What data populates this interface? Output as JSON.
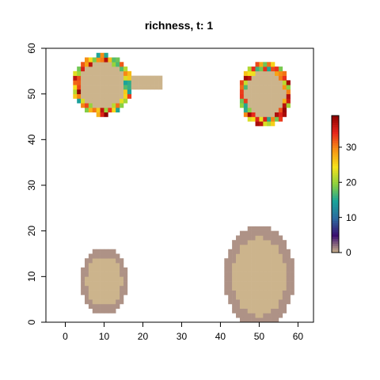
{
  "chart_data": {
    "type": "heatmap",
    "title": "richness, t: 1",
    "xlabel": "",
    "ylabel": "",
    "xlim": [
      -5,
      64
    ],
    "ylim": [
      0,
      60
    ],
    "x_ticks": [
      0,
      10,
      20,
      30,
      40,
      50,
      60
    ],
    "y_ticks": [
      0,
      10,
      20,
      30,
      40,
      50,
      60
    ],
    "grid": false,
    "cell_size": 1,
    "colorbar": {
      "min": 0,
      "max": 39,
      "ticks": [
        0,
        10,
        20,
        30
      ],
      "placement": "right",
      "stops": [
        "#ccb48c",
        "#3b0f6f",
        "#2c6aa0",
        "#1aa39a",
        "#8cd13f",
        "#f6e21b",
        "#f79414",
        "#e8271c",
        "#8b0000"
      ]
    },
    "patches": [
      {
        "cx": 9.5,
        "cy": 52,
        "rx": 7.5,
        "ry": 6.5,
        "inner_richness": 0,
        "ring_richness": [
          14,
          39
        ],
        "extension": {
          "x1": 17,
          "x2": 25,
          "y1": 51,
          "y2": 54
        }
      },
      {
        "cx": 51.5,
        "cy": 50,
        "rx": 6.5,
        "ry": 7,
        "inner_richness": 0,
        "ring_richness": [
          14,
          39
        ]
      },
      {
        "cx": 10,
        "cy": 9,
        "rx": 6,
        "ry": 7,
        "inner_richness": 0,
        "ring_richness": [
          1,
          1
        ]
      },
      {
        "cx": 50,
        "cy": 10,
        "rx": 9,
        "ry": 11,
        "inner_richness": 0,
        "ring_richness": [
          1,
          1
        ]
      }
    ]
  }
}
